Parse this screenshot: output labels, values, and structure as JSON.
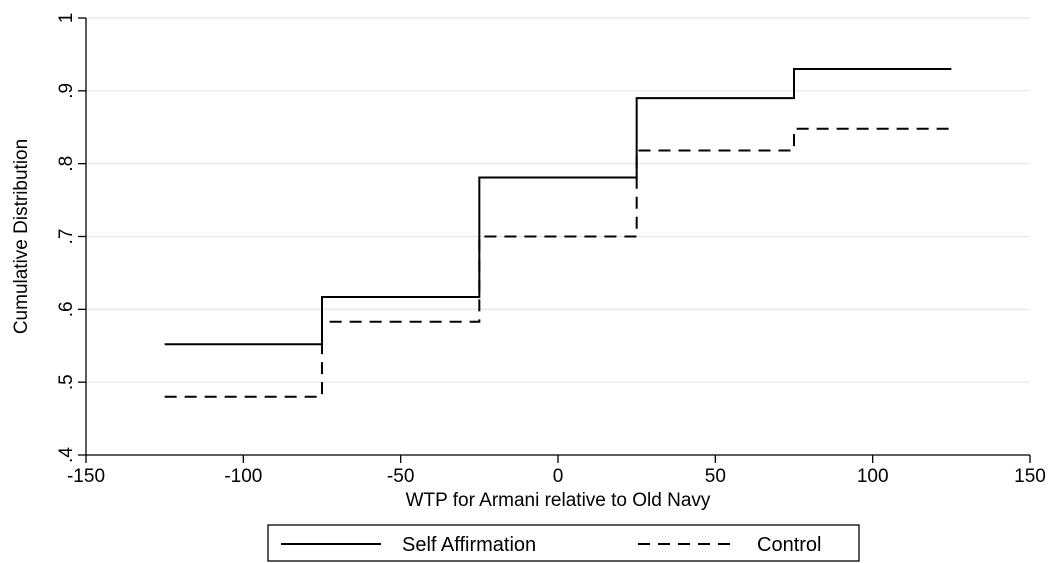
{
  "chart_data": {
    "type": "line",
    "step": true,
    "xlabel": "WTP for Armani relative to Old Navy",
    "ylabel": "Cumulative Distribution",
    "xlim": [
      -150,
      150
    ],
    "ylim": [
      0.4,
      1.0
    ],
    "xticks": [
      -150,
      -100,
      -50,
      0,
      50,
      100,
      150
    ],
    "xtick_labels": [
      "-150",
      "-100",
      "-50",
      "0",
      "50",
      "100",
      "150"
    ],
    "yticks": [
      0.4,
      0.5,
      0.6,
      0.7,
      0.8,
      0.9,
      1.0
    ],
    "ytick_labels": [
      ".4",
      ".5",
      ".6",
      ".7",
      ".8",
      ".9",
      "1"
    ],
    "grid": true,
    "legend_position": "bottom",
    "series": [
      {
        "name": "Self Affirmation",
        "style": "solid",
        "color": "#000000",
        "x": [
          -125,
          -75,
          -25,
          25,
          75,
          125
        ],
        "y": [
          0.552,
          0.617,
          0.781,
          0.89,
          0.93,
          0.93
        ]
      },
      {
        "name": "Control",
        "style": "dashed",
        "color": "#000000",
        "x": [
          -125,
          -75,
          -25,
          25,
          75,
          125
        ],
        "y": [
          0.48,
          0.583,
          0.7,
          0.818,
          0.848,
          0.848
        ]
      }
    ]
  }
}
